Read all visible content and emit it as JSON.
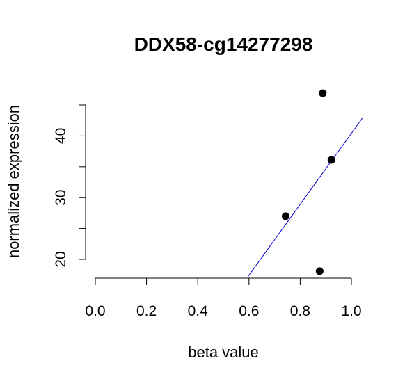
{
  "chart_data": {
    "type": "scatter",
    "title": "DDX58-cg14277298",
    "xlabel": "beta value",
    "ylabel": "normalized expression",
    "xlim": [
      0.0,
      1.0
    ],
    "ylim": [
      18,
      45
    ],
    "x_ticks": [
      0.0,
      0.2,
      0.4,
      0.6,
      0.8,
      1.0
    ],
    "x_tick_labels": [
      "0.0",
      "0.2",
      "0.4",
      "0.6",
      "0.8",
      "1.0"
    ],
    "y_ticks": [
      20,
      25,
      30,
      35,
      40,
      45
    ],
    "y_tick_labels": [
      "20",
      "",
      "30",
      "",
      "40",
      ""
    ],
    "grid": false,
    "points": [
      {
        "x": 0.743,
        "y": 27.0
      },
      {
        "x": 0.876,
        "y": 18.1
      },
      {
        "x": 0.888,
        "y": 46.9
      },
      {
        "x": 0.922,
        "y": 36.1
      }
    ],
    "regression_line": {
      "color": "#0000cc",
      "x": [
        0.596,
        1.045
      ],
      "y": [
        17.2,
        43.0
      ]
    },
    "point_color": "#000000"
  }
}
